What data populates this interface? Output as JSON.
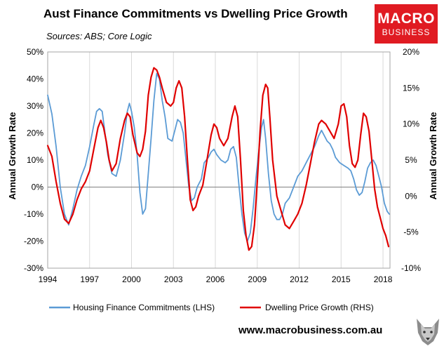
{
  "header": {
    "title": "Aust Finance Commitments vs Dwelling Price Growth",
    "subtitle": "Sources: ABS; Core Logic"
  },
  "logo": {
    "line1": "MACRO",
    "line2": "BUSINESS",
    "color": "#e01b22"
  },
  "footer": {
    "website": "www.macrobusiness.com.au"
  },
  "chart_data": {
    "type": "line",
    "title": "Aust Finance Commitments vs Dwelling Price Growth",
    "subtitle": "Sources: ABS; Core Logic",
    "ylabel_left": "Annual Growth Rate",
    "ylabel_right": "Annual Growth Rate",
    "xlabel": "",
    "x_ticks": [
      "1994",
      "1997",
      "2000",
      "2003",
      "2006",
      "2009",
      "2012",
      "2015",
      "2018"
    ],
    "y_left_ticks": [
      "50%",
      "40%",
      "30%",
      "20%",
      "10%",
      "0%",
      "-10%",
      "-20%",
      "-30%"
    ],
    "y_right_ticks": [
      "20%",
      "15%",
      "10%",
      "5%",
      "0%",
      "-5%",
      "-10%"
    ],
    "x_range": [
      1994,
      2018.5
    ],
    "ylim_left": [
      -30,
      50
    ],
    "ylim_right": [
      -10,
      20
    ],
    "grid": "vertical",
    "legend_position": "bottom",
    "series": [
      {
        "name": "Housing Finance Commitments (LHS)",
        "axis": "left",
        "color": "#5b9bd5",
        "points": [
          [
            1994.0,
            34
          ],
          [
            1994.3,
            27
          ],
          [
            1994.6,
            15
          ],
          [
            1994.9,
            0
          ],
          [
            1995.2,
            -10
          ],
          [
            1995.5,
            -14
          ],
          [
            1995.8,
            -8
          ],
          [
            1996.1,
            -1
          ],
          [
            1996.4,
            4
          ],
          [
            1996.7,
            8
          ],
          [
            1997.0,
            15
          ],
          [
            1997.3,
            23
          ],
          [
            1997.5,
            28
          ],
          [
            1997.7,
            29
          ],
          [
            1997.9,
            28
          ],
          [
            1998.1,
            20
          ],
          [
            1998.3,
            12
          ],
          [
            1998.6,
            5
          ],
          [
            1998.9,
            4
          ],
          [
            1999.2,
            10
          ],
          [
            1999.5,
            20
          ],
          [
            1999.7,
            28
          ],
          [
            1999.85,
            31
          ],
          [
            2000.0,
            28
          ],
          [
            2000.2,
            22
          ],
          [
            2000.4,
            12
          ],
          [
            2000.6,
            -2
          ],
          [
            2000.8,
            -10
          ],
          [
            2001.0,
            -8
          ],
          [
            2001.2,
            5
          ],
          [
            2001.4,
            18
          ],
          [
            2001.6,
            32
          ],
          [
            2001.8,
            42
          ],
          [
            2002.0,
            40
          ],
          [
            2002.2,
            32
          ],
          [
            2002.4,
            26
          ],
          [
            2002.6,
            18
          ],
          [
            2002.9,
            17
          ],
          [
            2003.1,
            21
          ],
          [
            2003.3,
            25
          ],
          [
            2003.5,
            24
          ],
          [
            2003.7,
            20
          ],
          [
            2003.9,
            10
          ],
          [
            2004.1,
            0
          ],
          [
            2004.3,
            -5
          ],
          [
            2004.5,
            -4
          ],
          [
            2004.7,
            0
          ],
          [
            2005.0,
            3
          ],
          [
            2005.2,
            9
          ],
          [
            2005.5,
            11
          ],
          [
            2005.7,
            13
          ],
          [
            2005.9,
            14
          ],
          [
            2006.1,
            12
          ],
          [
            2006.4,
            10
          ],
          [
            2006.7,
            9
          ],
          [
            2006.9,
            10
          ],
          [
            2007.1,
            14
          ],
          [
            2007.3,
            15
          ],
          [
            2007.5,
            11
          ],
          [
            2007.7,
            0
          ],
          [
            2007.9,
            -10
          ],
          [
            2008.1,
            -17
          ],
          [
            2008.3,
            -20
          ],
          [
            2008.5,
            -17
          ],
          [
            2008.7,
            -8
          ],
          [
            2008.9,
            3
          ],
          [
            2009.1,
            13
          ],
          [
            2009.3,
            22
          ],
          [
            2009.45,
            25
          ],
          [
            2009.6,
            18
          ],
          [
            2009.8,
            5
          ],
          [
            2010.0,
            -5
          ],
          [
            2010.2,
            -10
          ],
          [
            2010.4,
            -12
          ],
          [
            2010.6,
            -12
          ],
          [
            2010.8,
            -10
          ],
          [
            2011.0,
            -6
          ],
          [
            2011.3,
            -4
          ],
          [
            2011.6,
            0
          ],
          [
            2011.9,
            4
          ],
          [
            2012.2,
            6
          ],
          [
            2012.5,
            9
          ],
          [
            2012.8,
            12
          ],
          [
            2013.1,
            15
          ],
          [
            2013.4,
            19
          ],
          [
            2013.6,
            21
          ],
          [
            2013.8,
            19
          ],
          [
            2014.0,
            17
          ],
          [
            2014.2,
            16
          ],
          [
            2014.4,
            14
          ],
          [
            2014.6,
            11
          ],
          [
            2014.9,
            9
          ],
          [
            2015.2,
            8
          ],
          [
            2015.5,
            7
          ],
          [
            2015.7,
            6
          ],
          [
            2015.9,
            3
          ],
          [
            2016.1,
            -1
          ],
          [
            2016.3,
            -3
          ],
          [
            2016.5,
            -2
          ],
          [
            2016.7,
            2
          ],
          [
            2016.9,
            7
          ],
          [
            2017.1,
            9
          ],
          [
            2017.3,
            10
          ],
          [
            2017.5,
            8
          ],
          [
            2017.7,
            4
          ],
          [
            2017.9,
            0
          ],
          [
            2018.1,
            -6
          ],
          [
            2018.3,
            -9
          ],
          [
            2018.45,
            -10
          ]
        ]
      },
      {
        "name": "Dwelling Price Growth (RHS)",
        "axis": "right",
        "color": "#e00000",
        "points": [
          [
            1994.0,
            7.0
          ],
          [
            1994.3,
            5.5
          ],
          [
            1994.6,
            2.0
          ],
          [
            1994.9,
            -1.0
          ],
          [
            1995.2,
            -3.2
          ],
          [
            1995.5,
            -3.8
          ],
          [
            1995.8,
            -2.5
          ],
          [
            1996.1,
            -0.5
          ],
          [
            1996.4,
            1.0
          ],
          [
            1996.7,
            2.0
          ],
          [
            1997.0,
            3.5
          ],
          [
            1997.3,
            6.5
          ],
          [
            1997.6,
            9.5
          ],
          [
            1997.8,
            10.5
          ],
          [
            1998.0,
            9.5
          ],
          [
            1998.2,
            7.5
          ],
          [
            1998.4,
            5.0
          ],
          [
            1998.6,
            3.5
          ],
          [
            1998.9,
            4.5
          ],
          [
            1999.2,
            8.0
          ],
          [
            1999.5,
            10.5
          ],
          [
            1999.7,
            11.5
          ],
          [
            1999.9,
            11.0
          ],
          [
            2000.1,
            8.5
          ],
          [
            2000.4,
            6.0
          ],
          [
            2000.6,
            5.5
          ],
          [
            2000.8,
            6.5
          ],
          [
            2001.0,
            9.0
          ],
          [
            2001.2,
            14.0
          ],
          [
            2001.4,
            16.5
          ],
          [
            2001.6,
            17.8
          ],
          [
            2001.8,
            17.5
          ],
          [
            2002.0,
            16.5
          ],
          [
            2002.2,
            15.0
          ],
          [
            2002.5,
            13.0
          ],
          [
            2002.8,
            12.5
          ],
          [
            2003.0,
            13.0
          ],
          [
            2003.2,
            15.0
          ],
          [
            2003.4,
            16.0
          ],
          [
            2003.6,
            15.0
          ],
          [
            2003.8,
            11.0
          ],
          [
            2004.0,
            5.0
          ],
          [
            2004.2,
            -0.5
          ],
          [
            2004.4,
            -2.0
          ],
          [
            2004.6,
            -1.5
          ],
          [
            2004.8,
            0.0
          ],
          [
            2005.1,
            1.5
          ],
          [
            2005.4,
            5.0
          ],
          [
            2005.7,
            8.5
          ],
          [
            2005.9,
            10.0
          ],
          [
            2006.1,
            9.5
          ],
          [
            2006.3,
            8.0
          ],
          [
            2006.6,
            7.0
          ],
          [
            2006.9,
            8.0
          ],
          [
            2007.2,
            11.0
          ],
          [
            2007.4,
            12.5
          ],
          [
            2007.6,
            11.0
          ],
          [
            2007.8,
            5.0
          ],
          [
            2008.0,
            -2.0
          ],
          [
            2008.2,
            -5.5
          ],
          [
            2008.4,
            -7.5
          ],
          [
            2008.6,
            -7.0
          ],
          [
            2008.8,
            -4.0
          ],
          [
            2009.0,
            2.0
          ],
          [
            2009.2,
            9.0
          ],
          [
            2009.4,
            14.0
          ],
          [
            2009.6,
            15.5
          ],
          [
            2009.75,
            15.0
          ],
          [
            2009.9,
            11.0
          ],
          [
            2010.1,
            5.0
          ],
          [
            2010.4,
            0.0
          ],
          [
            2010.7,
            -2.0
          ],
          [
            2011.0,
            -4.0
          ],
          [
            2011.3,
            -4.5
          ],
          [
            2011.6,
            -3.5
          ],
          [
            2011.9,
            -2.5
          ],
          [
            2012.2,
            -1.0
          ],
          [
            2012.5,
            1.5
          ],
          [
            2012.8,
            4.5
          ],
          [
            2013.1,
            7.5
          ],
          [
            2013.4,
            10.0
          ],
          [
            2013.6,
            10.5
          ],
          [
            2013.9,
            10.0
          ],
          [
            2014.2,
            9.0
          ],
          [
            2014.5,
            8.0
          ],
          [
            2014.8,
            10.0
          ],
          [
            2015.0,
            12.5
          ],
          [
            2015.2,
            12.8
          ],
          [
            2015.4,
            11.0
          ],
          [
            2015.6,
            7.0
          ],
          [
            2015.8,
            4.5
          ],
          [
            2016.0,
            4.0
          ],
          [
            2016.2,
            5.0
          ],
          [
            2016.4,
            8.5
          ],
          [
            2016.6,
            11.5
          ],
          [
            2016.8,
            11.0
          ],
          [
            2017.0,
            9.0
          ],
          [
            2017.2,
            5.0
          ],
          [
            2017.4,
            1.0
          ],
          [
            2017.6,
            -1.5
          ],
          [
            2017.8,
            -3.0
          ],
          [
            2018.0,
            -4.5
          ],
          [
            2018.2,
            -5.5
          ],
          [
            2018.4,
            -7.0
          ]
        ]
      }
    ]
  }
}
